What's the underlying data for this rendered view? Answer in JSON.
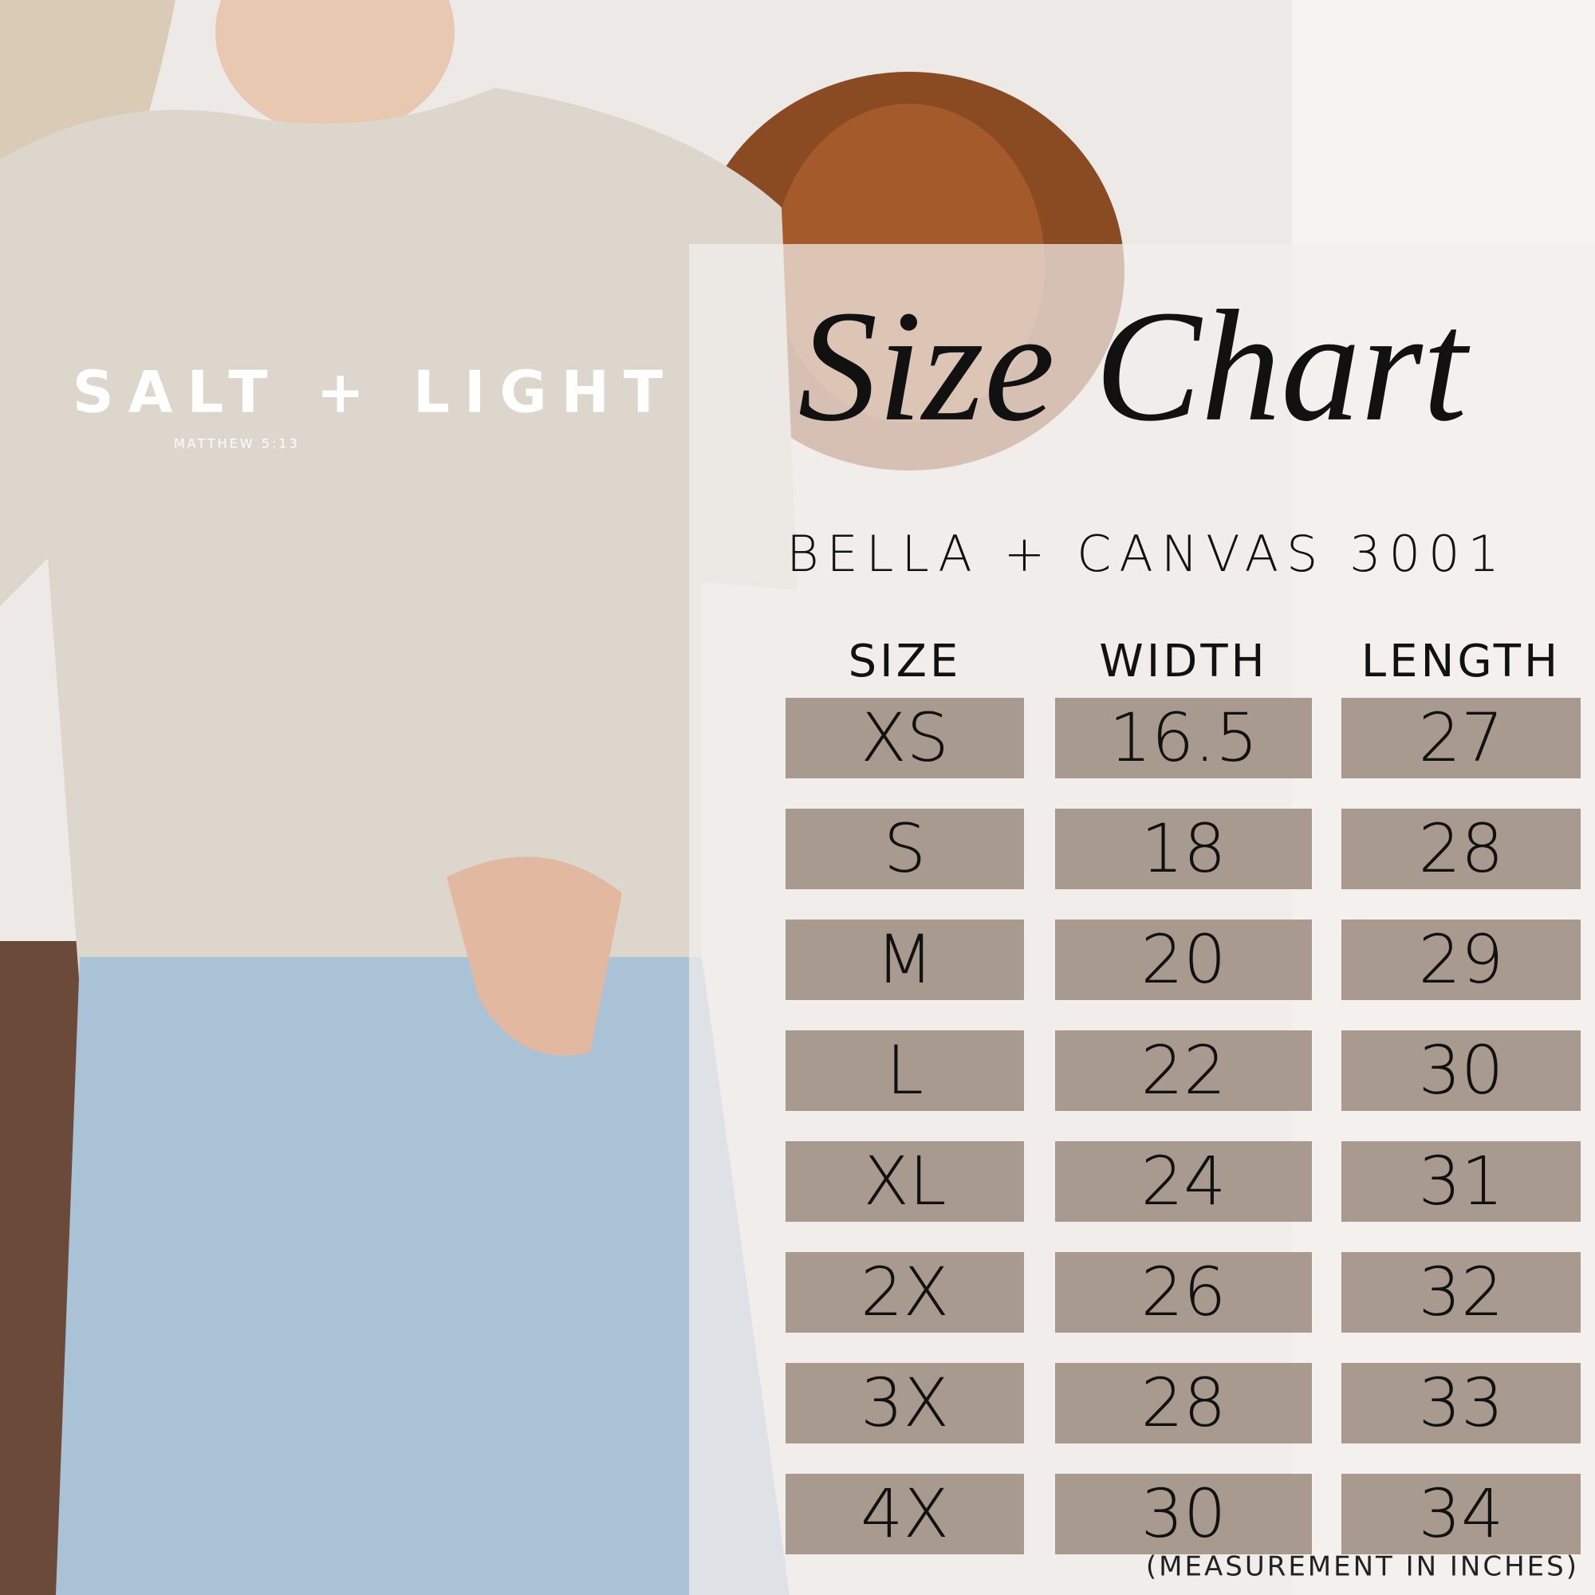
{
  "shirt": {
    "print": "SALT + LIGHT",
    "verse": "MATTHEW 5:13"
  },
  "panel": {
    "title": "Size Chart",
    "subtitle": "BELLA + CANVAS 3001",
    "table": {
      "headers": [
        "SIZE",
        "WIDTH",
        "LENGTH"
      ],
      "rows": [
        [
          "XS",
          "16.5",
          "27"
        ],
        [
          "S",
          "18",
          "28"
        ],
        [
          "M",
          "20",
          "29"
        ],
        [
          "L",
          "22",
          "30"
        ],
        [
          "XL",
          "24",
          "31"
        ],
        [
          "2X",
          "26",
          "32"
        ],
        [
          "3X",
          "28",
          "33"
        ],
        [
          "4X",
          "30",
          "34"
        ]
      ]
    },
    "note": "(MEASUREMENT IN INCHES)"
  }
}
